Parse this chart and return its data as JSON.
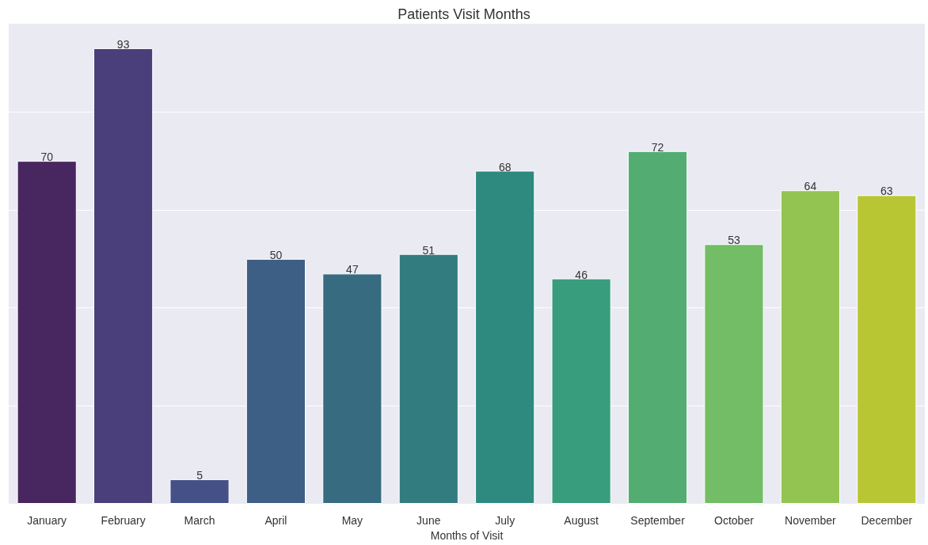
{
  "chart_data": {
    "type": "bar",
    "title": "Patients Visit Months",
    "xlabel": "Months of Visit",
    "categories": [
      "January",
      "February",
      "March",
      "April",
      "May",
      "June",
      "July",
      "August",
      "September",
      "October",
      "November",
      "December"
    ],
    "values": [
      70,
      93,
      5,
      50,
      47,
      51,
      68,
      46,
      72,
      53,
      64,
      63
    ],
    "colors": [
      "#48265f",
      "#4a3f7a",
      "#455087",
      "#3e5f85",
      "#376b80",
      "#327c80",
      "#2e8a7e",
      "#389d7c",
      "#53ad72",
      "#72bd66",
      "#93c451",
      "#b8c634"
    ],
    "ylim": [
      0,
      98
    ],
    "yticks": [
      {
        "value": 0,
        "label": null
      },
      {
        "value": 20,
        "label": null
      },
      {
        "value": 40,
        "label": null
      },
      {
        "value": 60,
        "label": null
      },
      {
        "value": 80,
        "label": null
      }
    ],
    "grid": "y",
    "data_labels": true
  }
}
